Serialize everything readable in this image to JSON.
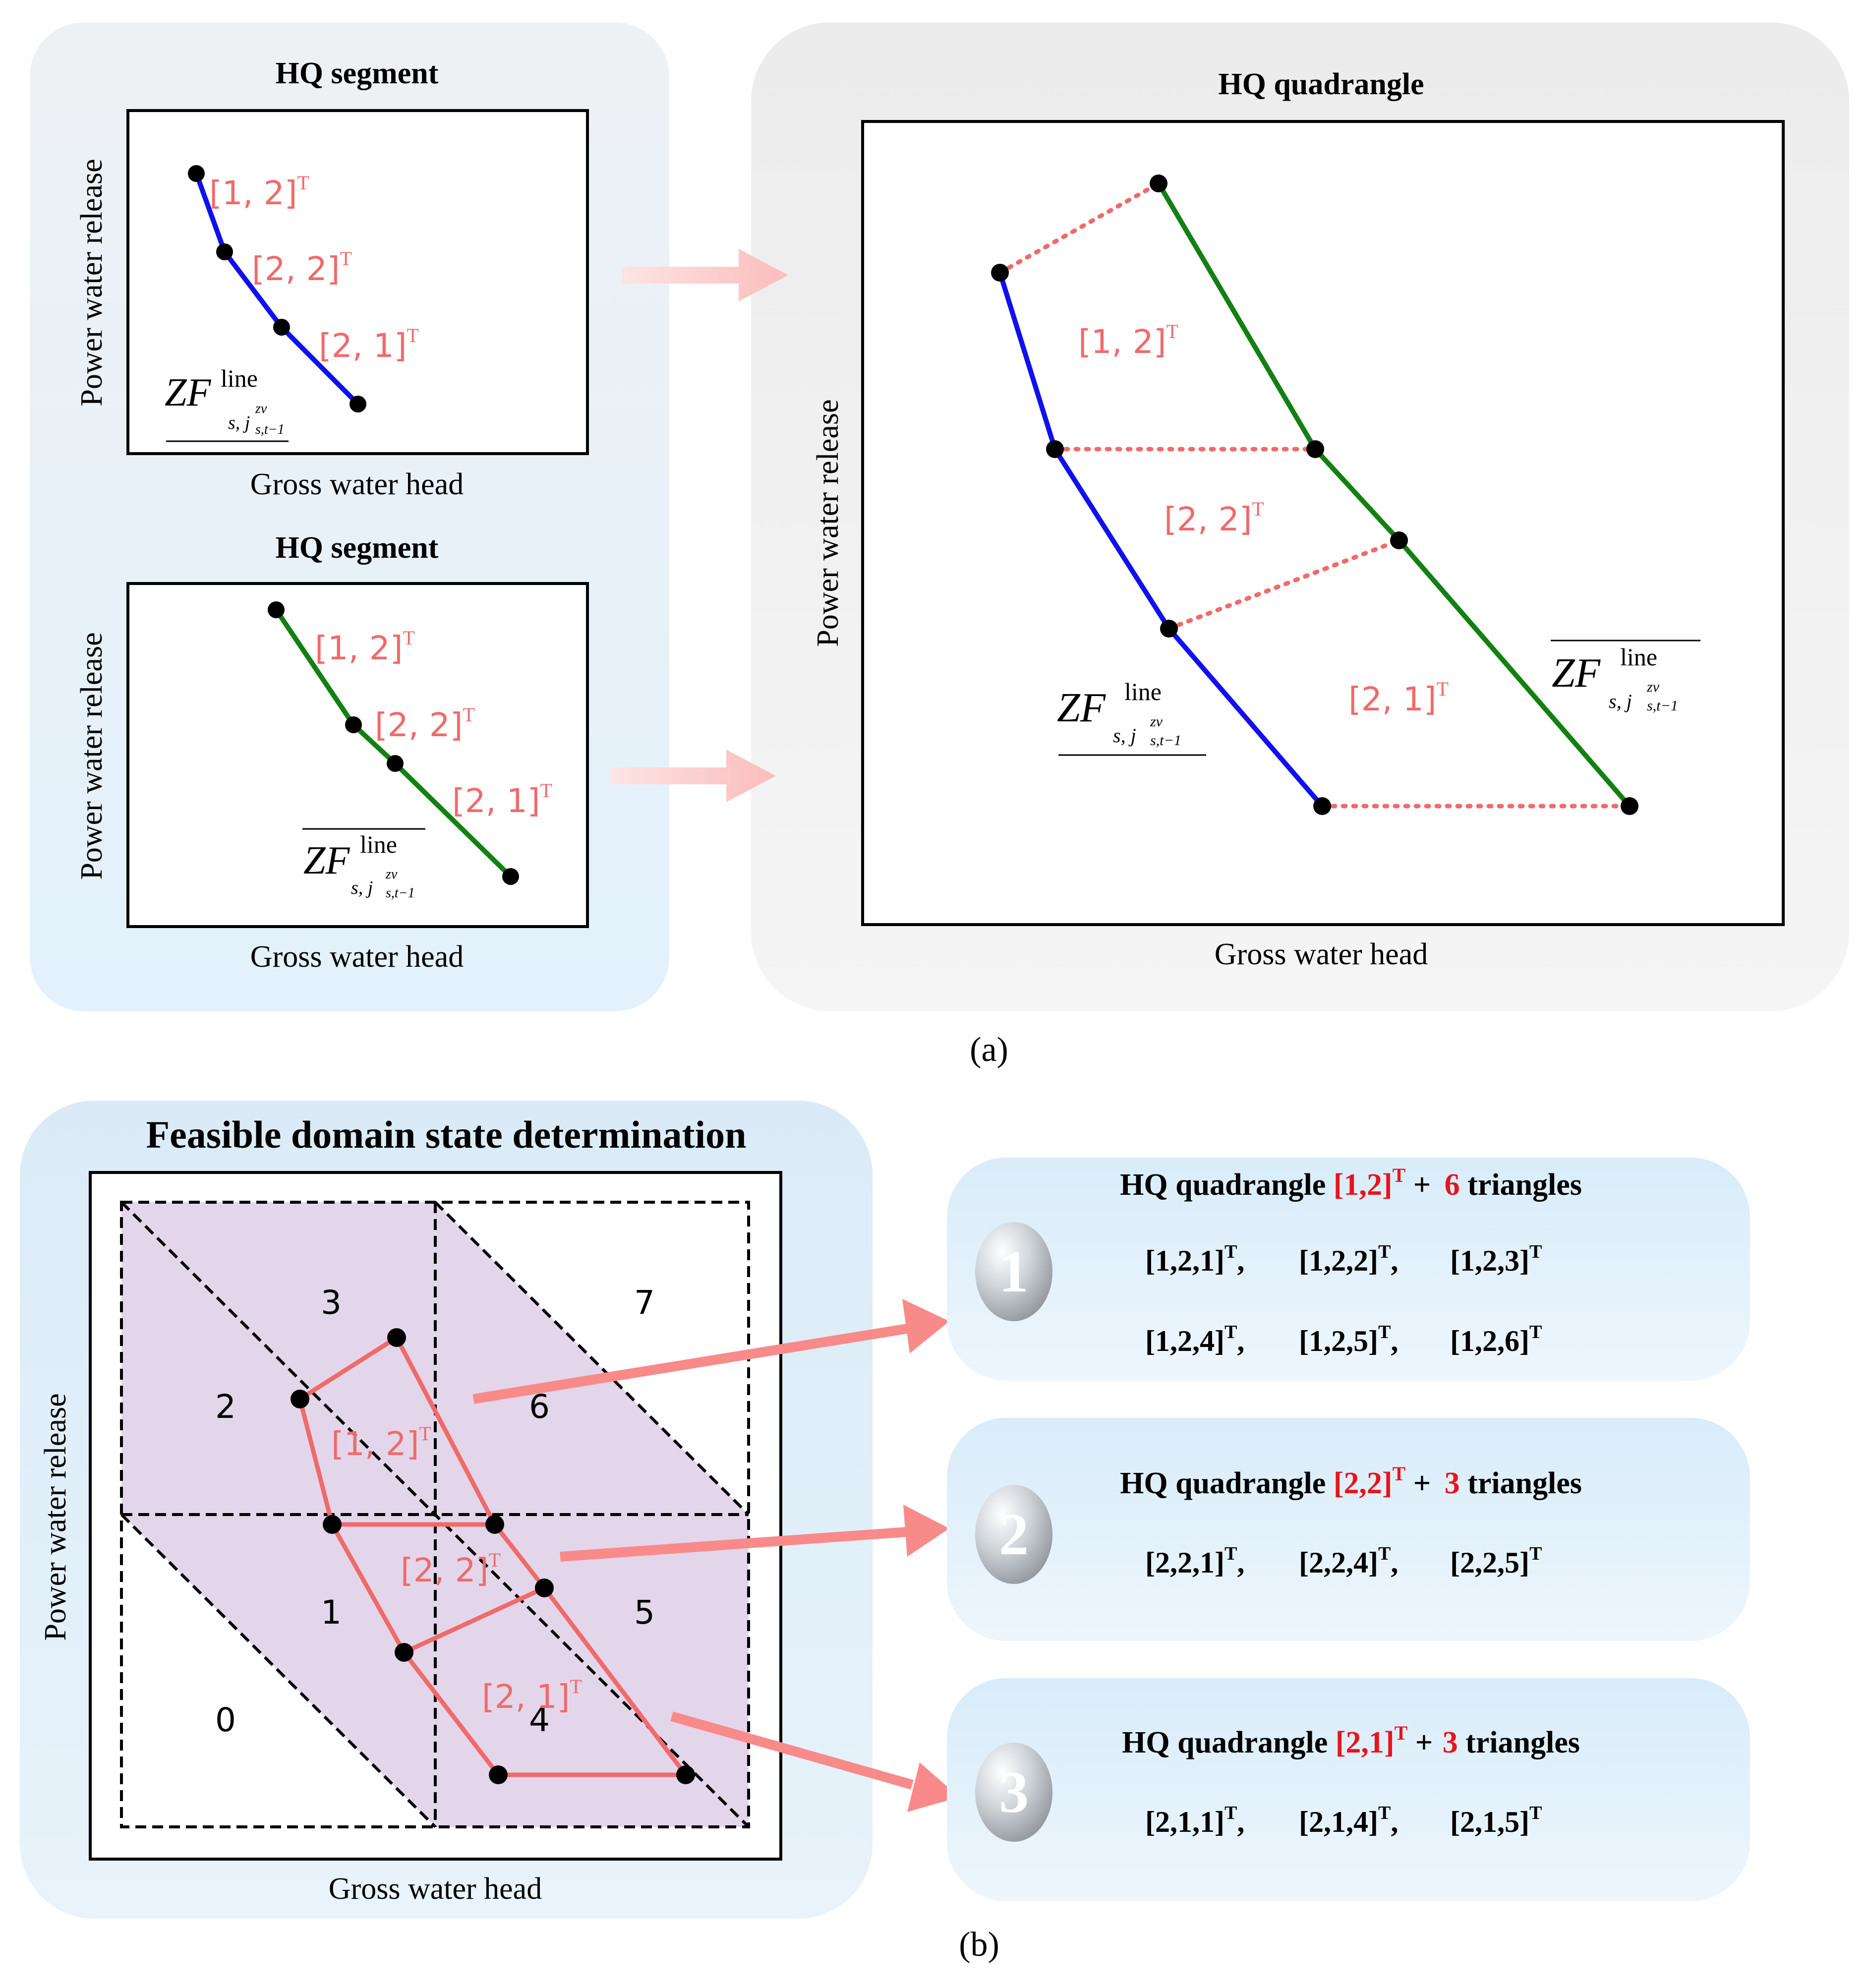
{
  "colors": {
    "blue_line": "#1010ee",
    "green_line": "#128012",
    "red_label": "#f06a6a",
    "red_text": "#e8141c",
    "quad_fill": "#e3d6ea",
    "panel_blue": "#e4f1fb",
    "panel_grey": "#f0f0f0",
    "arrow_pink": "#f98a8a"
  },
  "panel_a": {
    "caption": "(a)",
    "top_segment": {
      "title": "HQ segment",
      "xlabel": "Gross water head",
      "ylabel": "Power water release",
      "labels": [
        "[1, 2]",
        "[2, 2]",
        "[2, 1]"
      ],
      "sup": "T",
      "zf": {
        "base": "ZF",
        "sup": "line",
        "sub": "s, j",
        "subsub": "zv",
        "subtail": "s,t−1",
        "bar": "under"
      }
    },
    "bottom_segment": {
      "title": "HQ segment",
      "xlabel": "Gross water head",
      "ylabel": "Power water release",
      "labels": [
        "[1, 2]",
        "[2, 2]",
        "[2, 1]"
      ],
      "sup": "T",
      "zf": {
        "base": "ZF",
        "sup": "line",
        "sub": "s, j",
        "subsub": "zv",
        "subtail": "s,t−1",
        "bar": "over"
      }
    },
    "quadrangle": {
      "title": "HQ quadrangle",
      "xlabel": "Gross water head",
      "ylabel": "Power water release",
      "labels": [
        "[1, 2]",
        "[2, 2]",
        "[2, 1]"
      ],
      "sup": "T",
      "zf_lower": {
        "base": "ZF",
        "sup": "line",
        "sub": "s, j",
        "subsub": "zv",
        "subtail": "s,t−1",
        "bar": "under"
      },
      "zf_upper": {
        "base": "ZF",
        "sup": "line",
        "sub": "s, j",
        "subsub": "zv",
        "subtail": "s,t−1",
        "bar": "over"
      }
    }
  },
  "panel_b": {
    "caption": "(b)",
    "title": "Feasible domain state determination",
    "xlabel": "Gross water head",
    "ylabel": "Power water release",
    "regions": [
      "0",
      "1",
      "2",
      "3",
      "4",
      "5",
      "6",
      "7"
    ],
    "quad_labels": [
      "[1, 2]",
      "[2, 2]",
      "[2, 1]"
    ],
    "sup": "T",
    "results": [
      {
        "badge": "1",
        "prefix": "HQ quadrangle ",
        "quad": "[1,2]",
        "sup": "T",
        "plus": " + ",
        "count": "6",
        "suffix": " triangles",
        "rows": [
          [
            "[1,2,1]",
            "[1,2,2]",
            "[1,2,3]"
          ],
          [
            "[1,2,4]",
            "[1,2,5]",
            "[1,2,6]"
          ]
        ]
      },
      {
        "badge": "2",
        "prefix": "HQ quadrangle ",
        "quad": "[2,2]",
        "sup": "T",
        "plus": " + ",
        "count": "3",
        "suffix": " triangles",
        "rows": [
          [
            "[2,2,1]",
            "[2,2,4]",
            "[2,2,5]"
          ]
        ]
      },
      {
        "badge": "3",
        "prefix": "HQ quadrangle ",
        "quad": "[2,1]",
        "sup": "T",
        "plus": " + ",
        "count": "3",
        "suffix": " triangles",
        "rows": [
          [
            "[2,1,1]",
            "[2,1,4]",
            "[2,1,5]"
          ]
        ]
      }
    ]
  }
}
